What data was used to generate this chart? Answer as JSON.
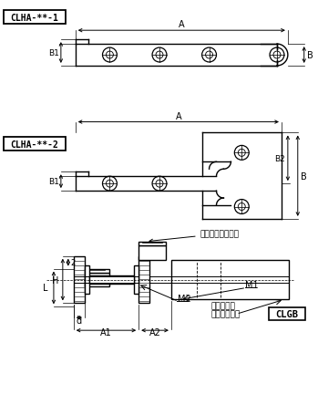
{
  "bg_color": "#ffffff",
  "line_color": "#000000",
  "label1": "CLHA-**-1",
  "label2": "CLHA-**-2",
  "label3": "内六角圆柱头螺栓",
  "label4_1": "动力夹块用",
  "label4_2": "定心导向套筒",
  "label5": "CLGB",
  "dim_A": "A",
  "dim_B": "B",
  "dim_B1": "B1",
  "dim_B2": "B2",
  "dim_H": "H",
  "dim_L": "L",
  "dim_2": "2",
  "dim_d": "d",
  "dim_A1": "A1",
  "dim_A2": "A2",
  "dim_M1": "M1",
  "dim_M2": "M2"
}
